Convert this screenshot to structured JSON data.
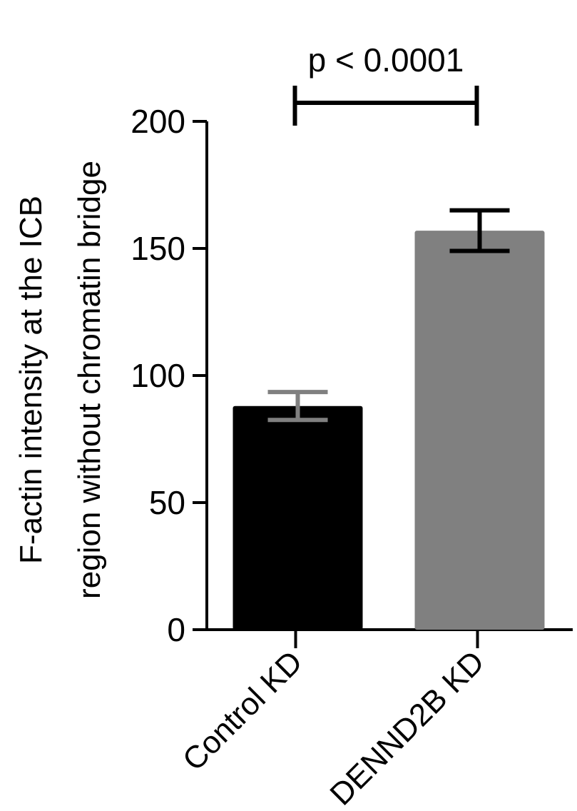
{
  "chart_data": {
    "type": "bar",
    "categories": [
      "Control KD",
      "DENND2B KD"
    ],
    "values": [
      88,
      157
    ],
    "errors": [
      5.5,
      8
    ],
    "bar_colors": [
      "#000000",
      "#808080"
    ],
    "error_colors": [
      "#808080",
      "#000000"
    ],
    "ylabel_lines": [
      "F-actin intensity at the ICB",
      "region without chromatin bridge"
    ],
    "ylim": [
      0,
      200
    ],
    "yticks": [
      0,
      50,
      100,
      150,
      200
    ],
    "significance": {
      "label": "p < 0.0001",
      "between": [
        0,
        1
      ]
    },
    "grid": false
  }
}
